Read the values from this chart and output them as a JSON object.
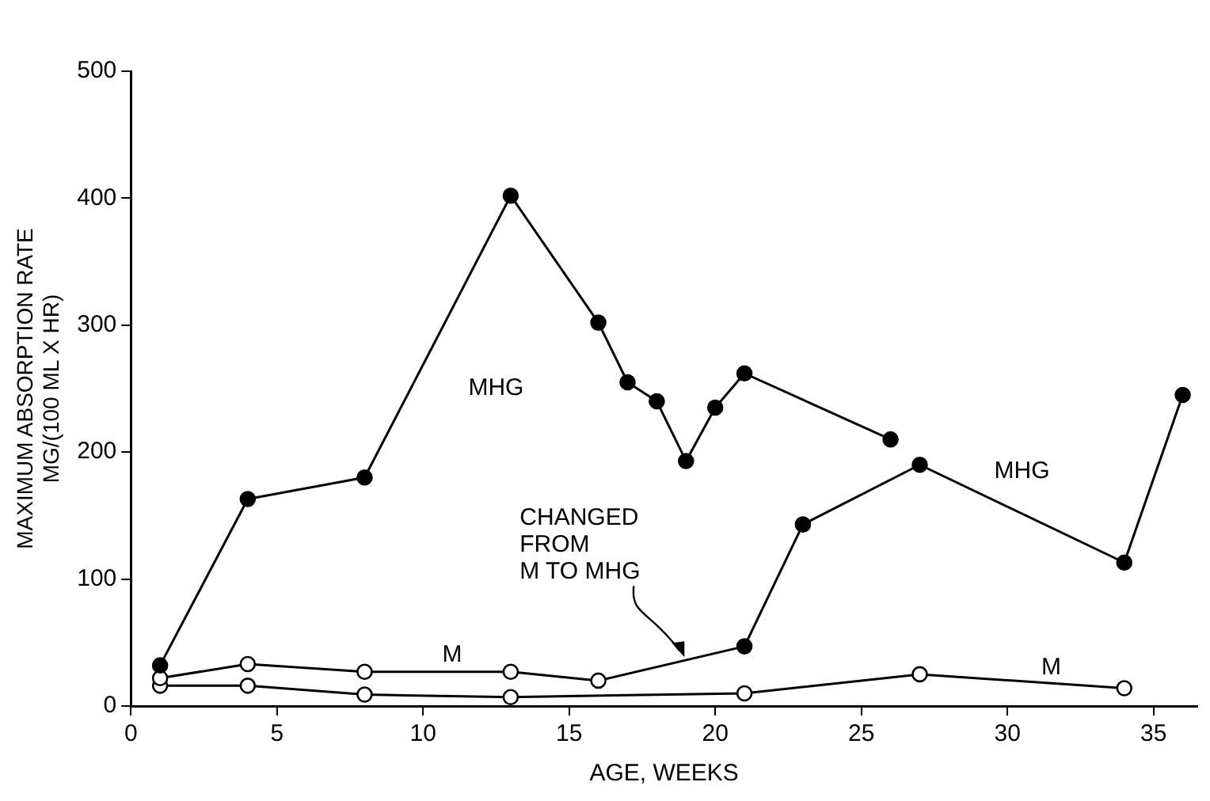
{
  "chart_data": {
    "type": "line",
    "xlabel": "AGE, WEEKS",
    "ylabel": "MAXIMUM ABSORPTION RATE\nMG/(100 ML X HR)",
    "series": [
      {
        "color": "#000000",
        "x": [
          1,
          4,
          8,
          13,
          16,
          17,
          18,
          19,
          20,
          21,
          26
        ],
        "values": [
          32,
          163,
          180,
          402,
          302,
          255,
          240,
          193,
          235,
          262,
          210
        ],
        "colors": [
          "#000000",
          "#000000",
          "#000000",
          "#000000",
          "#000000",
          "#000000",
          "#000000",
          "#000000",
          "#000000",
          "#000000",
          "#000000"
        ]
      },
      {
        "color": "#000000",
        "x": [
          1,
          4,
          8,
          13,
          16,
          21,
          23,
          27,
          34,
          36
        ],
        "values": [
          22,
          33,
          27,
          27,
          20,
          47,
          143,
          190,
          113,
          245
        ],
        "colors": [
          "#ffffff",
          "#ffffff",
          "#ffffff",
          "#ffffff",
          "#ffffff",
          "#000000",
          "#000000",
          "#000000",
          "#000000",
          "#000000"
        ]
      },
      {
        "color": "#000000",
        "x": [
          1,
          4,
          8,
          13,
          21,
          27,
          34
        ],
        "values": [
          16,
          16,
          9,
          7,
          10,
          25,
          14
        ],
        "colors": [
          "#ffffff",
          "#ffffff",
          "#ffffff",
          "#ffffff",
          "#ffffff",
          "#ffffff",
          "#ffffff"
        ]
      }
    ],
    "xlim": [
      0,
      36.5
    ],
    "xticks": [
      0,
      5,
      10,
      15,
      20,
      25,
      30,
      35
    ],
    "ylim": [
      0,
      500
    ],
    "yticks": [
      0,
      100,
      200,
      300,
      400,
      500
    ],
    "grid": false,
    "legend": false,
    "marker": "circle",
    "line_style": "solid",
    "annotations": [
      "MHG",
      "M",
      "MHG",
      "M",
      {
        "text": "CHANGED\nFROM\nM TO MHG",
        "x": 19,
        "y": 36
      }
    ]
  }
}
